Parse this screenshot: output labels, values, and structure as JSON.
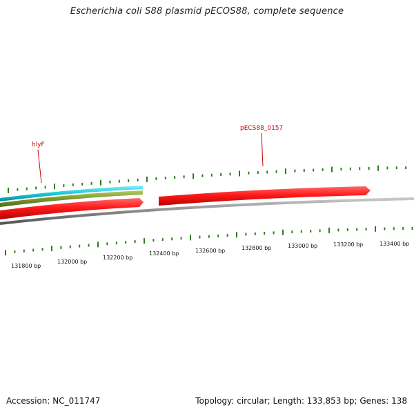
{
  "title": "Escherichia coli S88 plasmid pECOS88, complete sequence",
  "footer": {
    "accession": "Accession: NC_011747",
    "summary": "Topology: circular; Length: 133,853 bp; Genes: 138"
  },
  "colors": {
    "gene": "#ff2020",
    "cyan_track": "#1ec8d8",
    "olive_track": "#7a9a2a",
    "backbone": "#8a8a8a",
    "ticks": "#2e7d1e",
    "gene_label": "#cc0000"
  },
  "gene_labels": [
    {
      "name": "hlyF"
    },
    {
      "name": "pECS88_0157"
    }
  ],
  "scale_labels": [
    "131800 bp",
    "132000 bp",
    "132200 bp",
    "132400 bp",
    "132600 bp",
    "132800 bp",
    "133000 bp",
    "133200 bp",
    "133400 bp"
  ]
}
